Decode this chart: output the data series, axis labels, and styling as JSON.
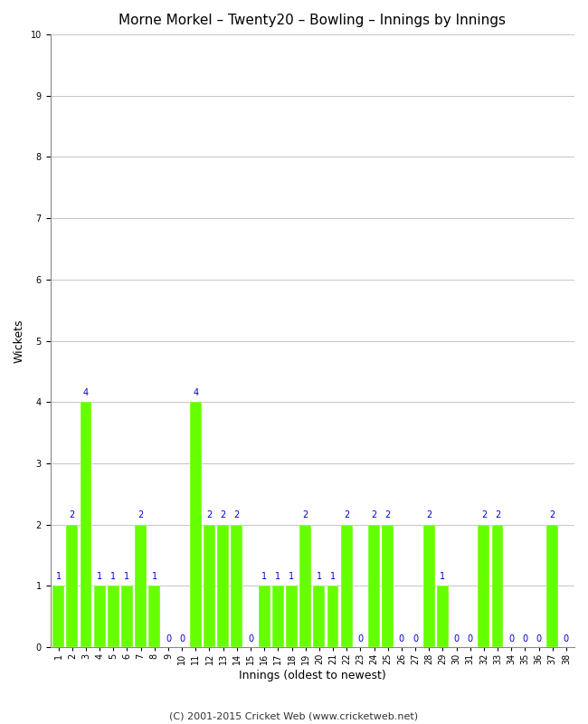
{
  "title": "Morne Morkel – Twenty20 – Bowling – Innings by Innings",
  "xlabel": "Innings (oldest to newest)",
  "ylabel": "Wickets",
  "innings": [
    1,
    2,
    3,
    4,
    5,
    6,
    7,
    8,
    9,
    10,
    11,
    12,
    13,
    14,
    15,
    16,
    17,
    18,
    19,
    20,
    21,
    22,
    23,
    24,
    25,
    26,
    27,
    28,
    29,
    30,
    31,
    32,
    33,
    34,
    35,
    36,
    37,
    38
  ],
  "wickets": [
    1,
    2,
    4,
    1,
    1,
    1,
    2,
    1,
    0,
    0,
    4,
    2,
    2,
    2,
    0,
    1,
    1,
    1,
    2,
    1,
    1,
    2,
    0,
    2,
    2,
    0,
    0,
    2,
    1,
    0,
    0,
    2,
    2,
    0,
    0,
    0,
    2,
    0
  ],
  "bar_color": "#66ff00",
  "label_color": "#0000cc",
  "background_color": "#ffffff",
  "ylim": [
    0,
    10
  ],
  "yticks": [
    0,
    1,
    2,
    3,
    4,
    5,
    6,
    7,
    8,
    9,
    10
  ],
  "title_fontsize": 11,
  "axis_label_fontsize": 9,
  "tick_fontsize": 7,
  "annotation_fontsize": 7,
  "footer": "(C) 2001-2015 Cricket Web (www.cricketweb.net)",
  "footer_fontsize": 8
}
